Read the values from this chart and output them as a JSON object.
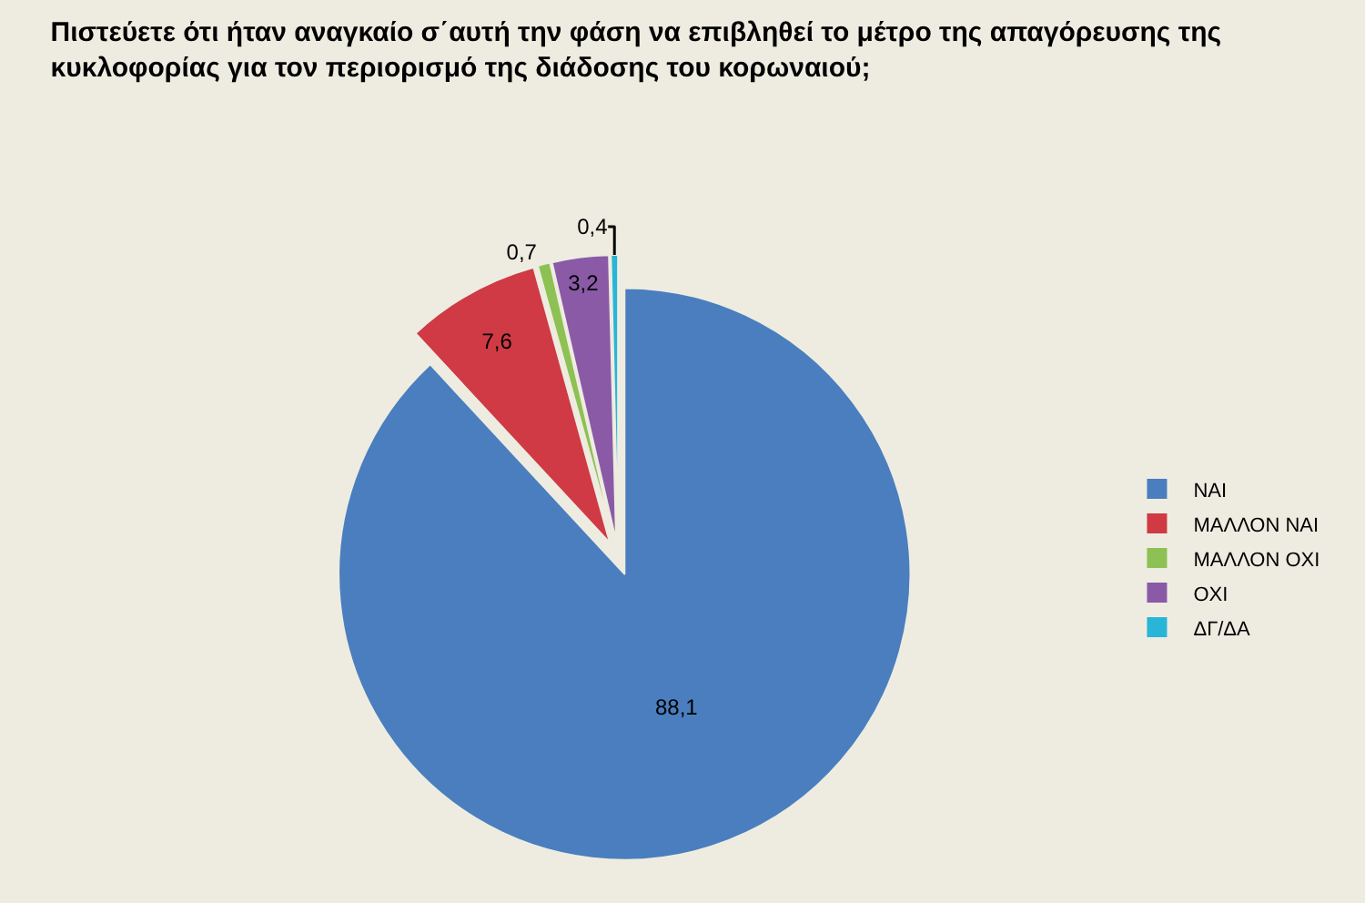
{
  "chart_data": {
    "type": "pie",
    "title": "Πιστεύετε ότι ήταν αναγκαίο σ΄αυτή την φάση να επιβληθεί το μέτρο της απαγόρευσης της κυκλοφορίας για τον περιορισμό της διάδοσης του κορωναιού;",
    "categories": [
      "ΝΑΙ",
      "ΜΑΛΛΟΝ ΝΑΙ",
      "ΜΑΛΛΟΝ ΟΧΙ",
      "ΟΧΙ",
      "ΔΓ/ΔΑ"
    ],
    "values": [
      88.1,
      7.6,
      0.7,
      3.2,
      0.4
    ],
    "value_labels": [
      "88,1",
      "7,6",
      "0,7",
      "3,2",
      "0,4"
    ],
    "colors": [
      "#4a7ebf",
      "#cf3a45",
      "#8dc153",
      "#8a5aa6",
      "#29b5d8"
    ],
    "legend": "right"
  }
}
